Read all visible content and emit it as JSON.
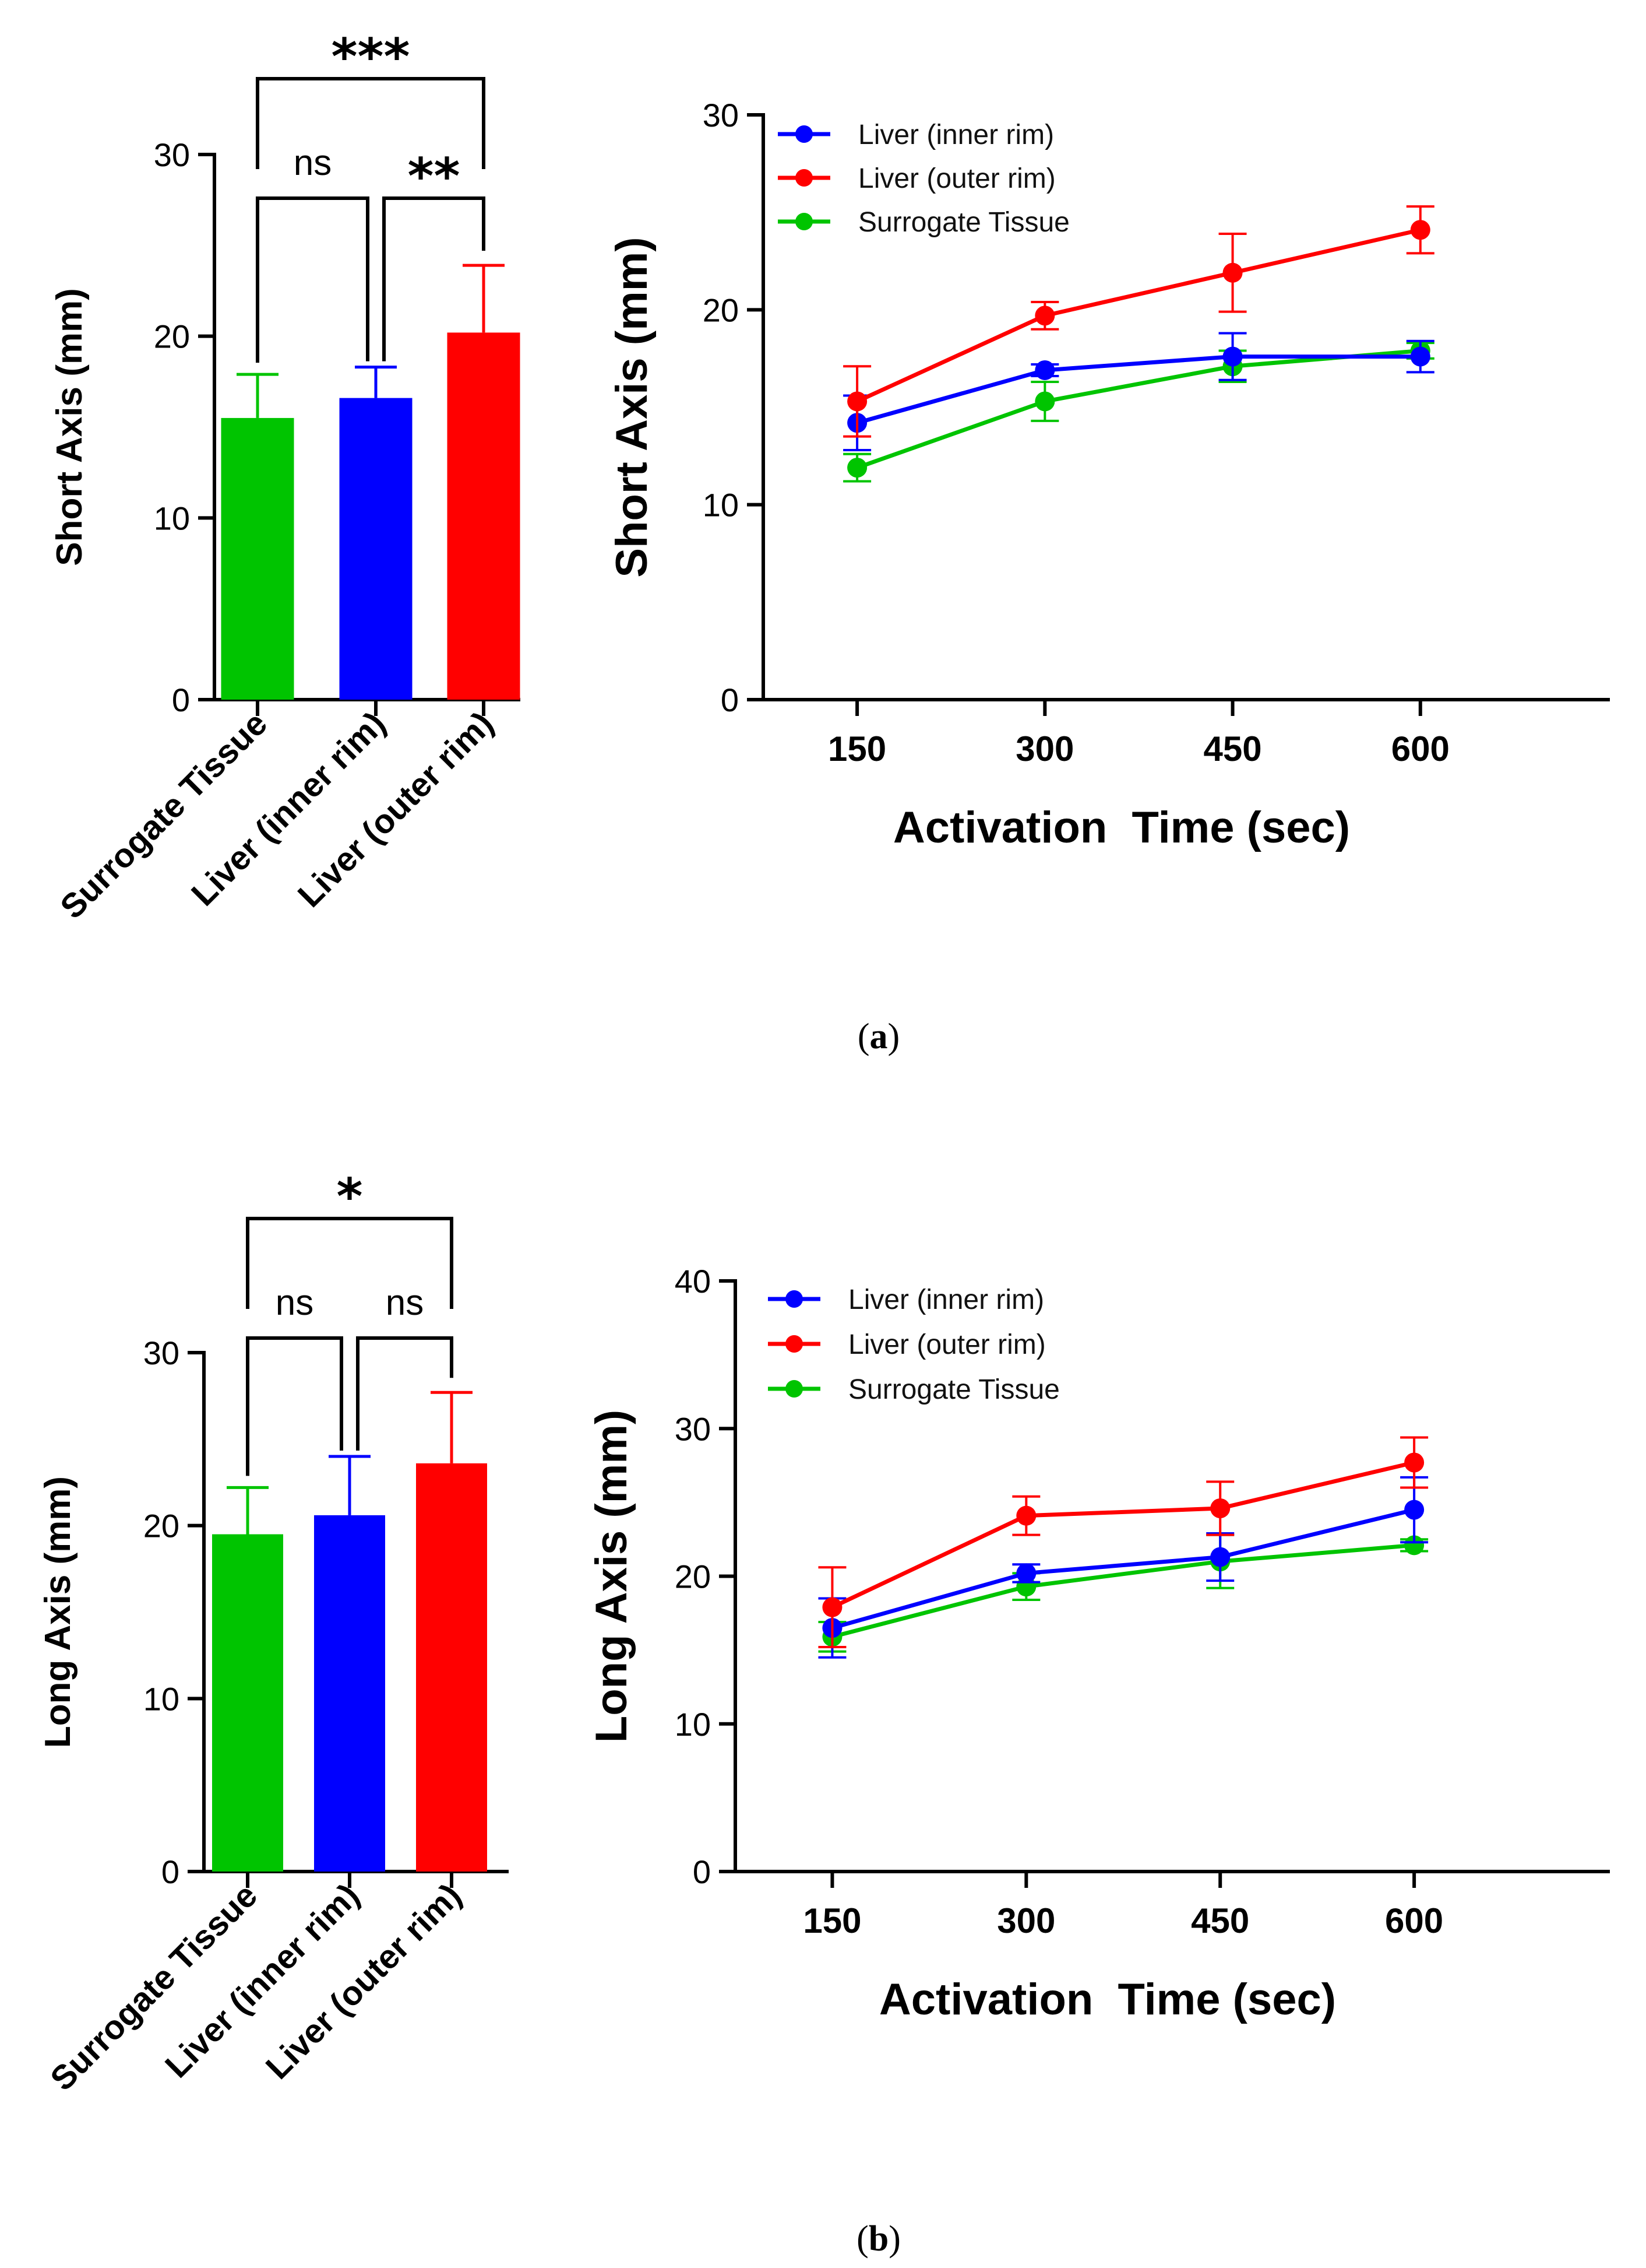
{
  "figure": {
    "panel_a_label": "a",
    "panel_b_label": "b"
  },
  "chart_data": [
    {
      "id": "a-bar",
      "type": "bar",
      "categories": [
        "Surrogate Tissue",
        "Liver (inner rim)",
        "Liver (outer rim)"
      ],
      "values": [
        15.5,
        16.6,
        20.2
      ],
      "errors": [
        2.4,
        1.7,
        3.7
      ],
      "colors": [
        "#00c400",
        "#0000ff",
        "#ff0000"
      ],
      "ylabel": "Short Axis (mm)",
      "ylim": [
        0,
        30
      ],
      "yticks": [
        0,
        10,
        20,
        30
      ],
      "significance": [
        {
          "from": 1,
          "to": 2,
          "label": "ns",
          "level": 1
        },
        {
          "from": 2,
          "to": 3,
          "label": "**",
          "level": 1
        },
        {
          "from": 1,
          "to": 3,
          "label": "***",
          "level": 2
        }
      ]
    },
    {
      "id": "a-line",
      "type": "line",
      "x": [
        150,
        300,
        450,
        600
      ],
      "xlabel": "Activation  Time (sec)",
      "ylabel": "Short Axis (mm)",
      "ylim": [
        0,
        30
      ],
      "yticks": [
        0,
        10,
        20,
        30
      ],
      "series": [
        {
          "name": "Liver (inner rim)",
          "color": "#0000ff",
          "values": [
            14.2,
            16.9,
            17.6,
            17.6
          ],
          "errors": [
            1.4,
            0.3,
            1.2,
            0.8
          ]
        },
        {
          "name": "Liver (outer rim)",
          "color": "#ff0000",
          "values": [
            15.3,
            19.7,
            21.9,
            24.1
          ],
          "errors": [
            1.8,
            0.7,
            2.0,
            1.2
          ]
        },
        {
          "name": "Surrogate Tissue",
          "color": "#00c400",
          "values": [
            11.9,
            15.3,
            17.1,
            17.9
          ],
          "errors": [
            0.7,
            1.0,
            0.8,
            0.4
          ]
        }
      ]
    },
    {
      "id": "b-bar",
      "type": "bar",
      "categories": [
        "Surrogate Tissue",
        "Liver (inner rim)",
        "Liver (outer rim)"
      ],
      "values": [
        19.5,
        20.6,
        23.6
      ],
      "errors": [
        2.7,
        3.4,
        4.1
      ],
      "colors": [
        "#00c400",
        "#0000ff",
        "#ff0000"
      ],
      "ylabel": "Long Axis (mm)",
      "ylim": [
        0,
        30
      ],
      "yticks": [
        0,
        10,
        20,
        30
      ],
      "significance": [
        {
          "from": 1,
          "to": 2,
          "label": "ns",
          "level": 1
        },
        {
          "from": 2,
          "to": 3,
          "label": "ns",
          "level": 1
        },
        {
          "from": 1,
          "to": 3,
          "label": "*",
          "level": 2
        }
      ]
    },
    {
      "id": "b-line",
      "type": "line",
      "x": [
        150,
        300,
        450,
        600
      ],
      "xlabel": "Activation  Time (sec)",
      "ylabel": "Long Axis (mm)",
      "ylim": [
        0,
        40
      ],
      "yticks": [
        0,
        10,
        20,
        30,
        40
      ],
      "series": [
        {
          "name": "Liver (inner rim)",
          "color": "#0000ff",
          "values": [
            16.5,
            20.2,
            21.3,
            24.5
          ],
          "errors": [
            2.0,
            0.6,
            1.6,
            2.2
          ]
        },
        {
          "name": "Liver (outer rim)",
          "color": "#ff0000",
          "values": [
            17.9,
            24.1,
            24.6,
            27.7
          ],
          "errors": [
            2.7,
            1.3,
            1.8,
            1.7
          ]
        },
        {
          "name": "Surrogate Tissue",
          "color": "#00c400",
          "values": [
            15.9,
            19.3,
            21.0,
            22.1
          ],
          "errors": [
            1.0,
            0.9,
            1.8,
            0.4
          ]
        }
      ]
    }
  ]
}
